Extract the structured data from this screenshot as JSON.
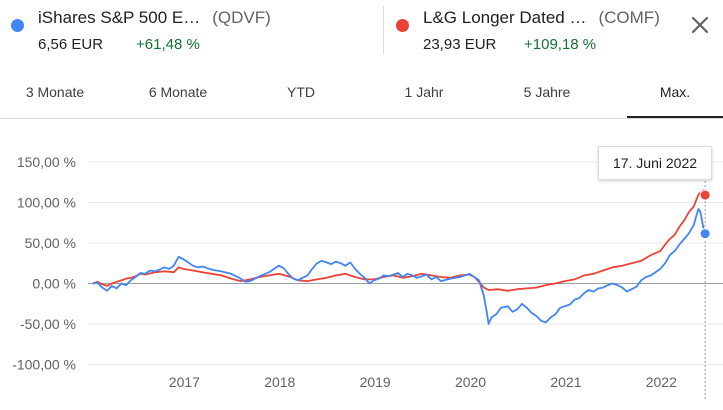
{
  "legend": [
    {
      "name": "iShares S&P 500 E…",
      "ticker": "(QDVF)",
      "price": "6,56 EUR",
      "change": "+61,48 %",
      "color": "#4285f4"
    },
    {
      "name": "L&G Longer Dated …",
      "ticker": "(COMF)",
      "price": "23,93 EUR",
      "change": "+109,18 %",
      "color": "#ea4335"
    }
  ],
  "close_icon": "close-icon",
  "tabs": [
    {
      "label": "3 Monate"
    },
    {
      "label": "6 Monate"
    },
    {
      "label": "YTD"
    },
    {
      "label": "1 Jahr"
    },
    {
      "label": "5 Jahre"
    },
    {
      "label": "Max.",
      "active": true
    }
  ],
  "tooltip": {
    "date": "17. Juni 2022"
  },
  "chart_data": {
    "type": "line",
    "y_ticks": [
      150,
      100,
      50,
      0,
      -50,
      -100
    ],
    "y_tick_labels": [
      "150,00 %",
      "100,00 %",
      "50,00 %",
      "0,00 %",
      "-50,00 %",
      "-100,00 %"
    ],
    "x_ticks": [
      2017,
      2018,
      2019,
      2020,
      2021,
      2022
    ],
    "x_tick_labels": [
      "2017",
      "2018",
      "2019",
      "2020",
      "2021",
      "2022"
    ],
    "xlim": [
      2016.0,
      2022.5
    ],
    "ylim": [
      -100,
      150
    ],
    "zero_line": true,
    "grid": "horizontal",
    "series": [
      {
        "name": "iShares S&P 500 E… (QDVF)",
        "color": "#4285f4",
        "points": [
          [
            2016.05,
            0
          ],
          [
            2016.1,
            1
          ],
          [
            2016.15,
            -5
          ],
          [
            2016.2,
            -9
          ],
          [
            2016.25,
            -3
          ],
          [
            2016.3,
            -6
          ],
          [
            2016.35,
            0
          ],
          [
            2016.4,
            -2
          ],
          [
            2016.45,
            4
          ],
          [
            2016.5,
            8
          ],
          [
            2016.55,
            13
          ],
          [
            2016.6,
            12
          ],
          [
            2016.65,
            16
          ],
          [
            2016.7,
            15
          ],
          [
            2016.75,
            17
          ],
          [
            2016.8,
            20
          ],
          [
            2016.85,
            18
          ],
          [
            2016.9,
            22
          ],
          [
            2016.95,
            33
          ],
          [
            2017.0,
            30
          ],
          [
            2017.05,
            26
          ],
          [
            2017.1,
            22
          ],
          [
            2017.15,
            20
          ],
          [
            2017.2,
            21
          ],
          [
            2017.3,
            17
          ],
          [
            2017.4,
            15
          ],
          [
            2017.5,
            12
          ],
          [
            2017.6,
            6
          ],
          [
            2017.65,
            2
          ],
          [
            2017.7,
            3
          ],
          [
            2017.8,
            9
          ],
          [
            2017.9,
            14
          ],
          [
            2017.95,
            18
          ],
          [
            2018.0,
            22
          ],
          [
            2018.05,
            19
          ],
          [
            2018.1,
            12
          ],
          [
            2018.15,
            6
          ],
          [
            2018.2,
            4
          ],
          [
            2018.3,
            10
          ],
          [
            2018.35,
            18
          ],
          [
            2018.4,
            25
          ],
          [
            2018.45,
            28
          ],
          [
            2018.5,
            26
          ],
          [
            2018.55,
            24
          ],
          [
            2018.6,
            27
          ],
          [
            2018.65,
            25
          ],
          [
            2018.7,
            22
          ],
          [
            2018.75,
            26
          ],
          [
            2018.8,
            18
          ],
          [
            2018.85,
            12
          ],
          [
            2018.9,
            7
          ],
          [
            2018.95,
            0
          ],
          [
            2019.0,
            4
          ],
          [
            2019.05,
            6
          ],
          [
            2019.1,
            10
          ],
          [
            2019.15,
            9
          ],
          [
            2019.25,
            13
          ],
          [
            2019.3,
            8
          ],
          [
            2019.35,
            12
          ],
          [
            2019.4,
            10
          ],
          [
            2019.45,
            7
          ],
          [
            2019.55,
            11
          ],
          [
            2019.6,
            5
          ],
          [
            2019.65,
            8
          ],
          [
            2019.7,
            3
          ],
          [
            2019.8,
            6
          ],
          [
            2019.9,
            8
          ],
          [
            2019.95,
            10
          ],
          [
            2020.0,
            12
          ],
          [
            2020.05,
            8
          ],
          [
            2020.1,
            4
          ],
          [
            2020.15,
            -15
          ],
          [
            2020.18,
            -35
          ],
          [
            2020.2,
            -50
          ],
          [
            2020.23,
            -42
          ],
          [
            2020.28,
            -38
          ],
          [
            2020.33,
            -30
          ],
          [
            2020.4,
            -28
          ],
          [
            2020.45,
            -35
          ],
          [
            2020.5,
            -32
          ],
          [
            2020.55,
            -25
          ],
          [
            2020.6,
            -30
          ],
          [
            2020.65,
            -36
          ],
          [
            2020.7,
            -40
          ],
          [
            2020.75,
            -46
          ],
          [
            2020.8,
            -48
          ],
          [
            2020.85,
            -42
          ],
          [
            2020.9,
            -38
          ],
          [
            2020.95,
            -30
          ],
          [
            2021.0,
            -28
          ],
          [
            2021.05,
            -26
          ],
          [
            2021.1,
            -20
          ],
          [
            2021.15,
            -18
          ],
          [
            2021.2,
            -12
          ],
          [
            2021.25,
            -8
          ],
          [
            2021.3,
            -10
          ],
          [
            2021.35,
            -6
          ],
          [
            2021.4,
            -5
          ],
          [
            2021.45,
            -2
          ],
          [
            2021.5,
            0
          ],
          [
            2021.55,
            -2
          ],
          [
            2021.6,
            -5
          ],
          [
            2021.65,
            -10
          ],
          [
            2021.7,
            -7
          ],
          [
            2021.75,
            -4
          ],
          [
            2021.8,
            4
          ],
          [
            2021.85,
            8
          ],
          [
            2021.9,
            10
          ],
          [
            2021.95,
            14
          ],
          [
            2022.0,
            18
          ],
          [
            2022.05,
            25
          ],
          [
            2022.1,
            35
          ],
          [
            2022.15,
            40
          ],
          [
            2022.2,
            48
          ],
          [
            2022.25,
            55
          ],
          [
            2022.3,
            62
          ],
          [
            2022.35,
            72
          ],
          [
            2022.38,
            85
          ],
          [
            2022.4,
            92
          ],
          [
            2022.42,
            88
          ],
          [
            2022.45,
            70
          ],
          [
            2022.47,
            61.48
          ]
        ]
      },
      {
        "name": "L&G Longer Dated … (COMF)",
        "color": "#ea4335",
        "points": [
          [
            2016.05,
            0
          ],
          [
            2016.1,
            2
          ],
          [
            2016.15,
            -1
          ],
          [
            2016.2,
            -3
          ],
          [
            2016.25,
            0
          ],
          [
            2016.3,
            2
          ],
          [
            2016.35,
            4
          ],
          [
            2016.4,
            6
          ],
          [
            2016.45,
            7
          ],
          [
            2016.5,
            9
          ],
          [
            2016.55,
            12
          ],
          [
            2016.6,
            11
          ],
          [
            2016.7,
            14
          ],
          [
            2016.8,
            15
          ],
          [
            2016.9,
            14
          ],
          [
            2016.95,
            20
          ],
          [
            2017.0,
            18
          ],
          [
            2017.1,
            16
          ],
          [
            2017.2,
            14
          ],
          [
            2017.3,
            12
          ],
          [
            2017.4,
            10
          ],
          [
            2017.5,
            6
          ],
          [
            2017.6,
            3
          ],
          [
            2017.7,
            5
          ],
          [
            2017.8,
            8
          ],
          [
            2017.9,
            10
          ],
          [
            2018.0,
            12
          ],
          [
            2018.1,
            9
          ],
          [
            2018.2,
            4
          ],
          [
            2018.3,
            3
          ],
          [
            2018.4,
            5
          ],
          [
            2018.5,
            7
          ],
          [
            2018.6,
            10
          ],
          [
            2018.7,
            12
          ],
          [
            2018.8,
            8
          ],
          [
            2018.9,
            5
          ],
          [
            2019.0,
            5
          ],
          [
            2019.1,
            8
          ],
          [
            2019.2,
            10
          ],
          [
            2019.3,
            7
          ],
          [
            2019.4,
            9
          ],
          [
            2019.5,
            12
          ],
          [
            2019.6,
            10
          ],
          [
            2019.7,
            8
          ],
          [
            2019.8,
            7
          ],
          [
            2019.9,
            10
          ],
          [
            2020.0,
            11
          ],
          [
            2020.05,
            8
          ],
          [
            2020.1,
            2
          ],
          [
            2020.15,
            -5
          ],
          [
            2020.2,
            -8
          ],
          [
            2020.3,
            -7
          ],
          [
            2020.4,
            -9
          ],
          [
            2020.5,
            -7
          ],
          [
            2020.6,
            -6
          ],
          [
            2020.7,
            -5
          ],
          [
            2020.8,
            -2
          ],
          [
            2020.9,
            0
          ],
          [
            2021.0,
            3
          ],
          [
            2021.1,
            5
          ],
          [
            2021.2,
            10
          ],
          [
            2021.3,
            12
          ],
          [
            2021.4,
            16
          ],
          [
            2021.5,
            20
          ],
          [
            2021.6,
            22
          ],
          [
            2021.7,
            25
          ],
          [
            2021.8,
            28
          ],
          [
            2021.9,
            35
          ],
          [
            2022.0,
            40
          ],
          [
            2022.05,
            48
          ],
          [
            2022.1,
            55
          ],
          [
            2022.15,
            60
          ],
          [
            2022.2,
            70
          ],
          [
            2022.25,
            78
          ],
          [
            2022.3,
            88
          ],
          [
            2022.35,
            95
          ],
          [
            2022.4,
            110
          ],
          [
            2022.45,
            115
          ],
          [
            2022.47,
            109.18
          ]
        ]
      }
    ]
  }
}
